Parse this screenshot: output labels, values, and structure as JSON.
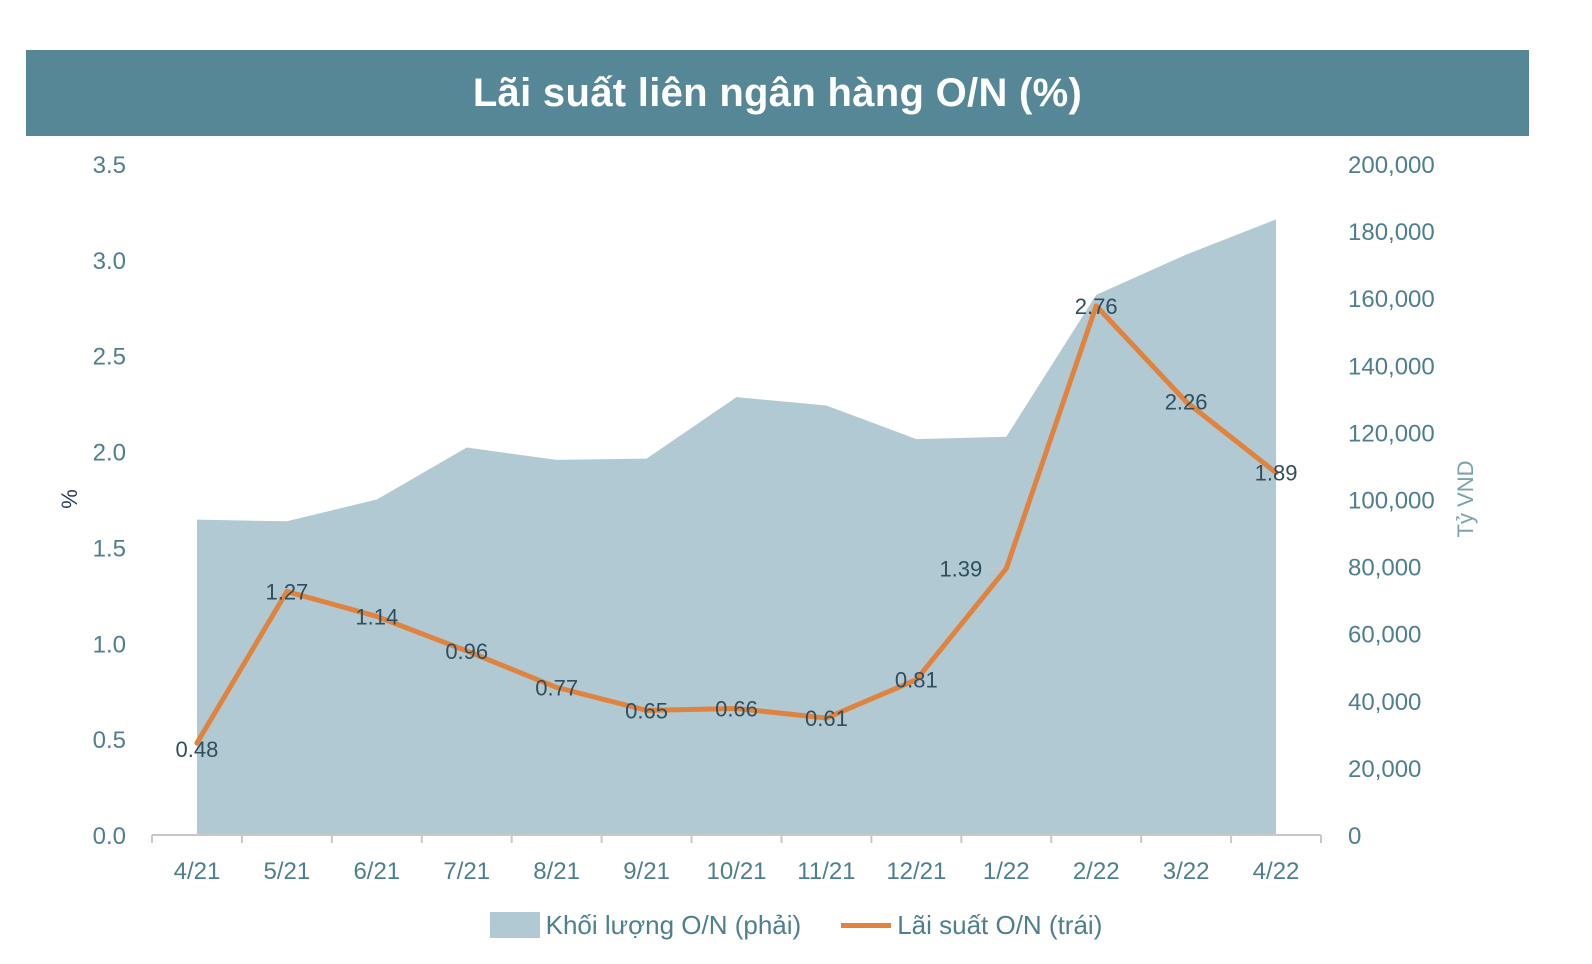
{
  "title": "Lãi suất liên ngân hàng O/N (%)",
  "colors": {
    "header": "#558797",
    "area": "#b1c9d3",
    "line": "#e0833f",
    "tick": "#4d7f8f"
  },
  "chart_data": {
    "type": "line",
    "categories": [
      "4/21",
      "5/21",
      "6/21",
      "7/21",
      "8/21",
      "9/21",
      "10/21",
      "11/21",
      "12/21",
      "1/22",
      "2/22",
      "3/22",
      "4/22"
    ],
    "series": [
      {
        "name": "Khối lượng O/N (phải)",
        "type": "area",
        "axis": "right",
        "values": [
          94000,
          93500,
          100000,
          115500,
          111800,
          112200,
          130500,
          128000,
          118000,
          118700,
          161000,
          173000,
          183500
        ]
      },
      {
        "name": "Lãi suất O/N (trái)",
        "type": "line",
        "axis": "left",
        "values": [
          0.48,
          1.27,
          1.14,
          0.96,
          0.77,
          0.65,
          0.66,
          0.61,
          0.81,
          1.39,
          2.76,
          2.26,
          1.89
        ],
        "labels": [
          "0.48",
          "1.27",
          "1.14",
          "0.96",
          "0.77",
          "0.65",
          "0.66",
          "0.61",
          "0.81",
          "1.39",
          "2.76",
          "2.26",
          "1.89"
        ]
      }
    ],
    "y_left": {
      "label": "%",
      "range": [
        0,
        3.5
      ],
      "ticks": [
        "0.0",
        "0.5",
        "1.0",
        "1.5",
        "2.0",
        "2.5",
        "3.0",
        "3.5"
      ]
    },
    "y_right": {
      "label": "Tỷ VND",
      "range": [
        0,
        200000
      ],
      "ticks": [
        "0",
        "20,000",
        "40,000",
        "60,000",
        "80,000",
        "100,000",
        "120,000",
        "140,000",
        "160,000",
        "180,000",
        "200,000"
      ]
    },
    "legend_position": "bottom",
    "grid": false
  }
}
